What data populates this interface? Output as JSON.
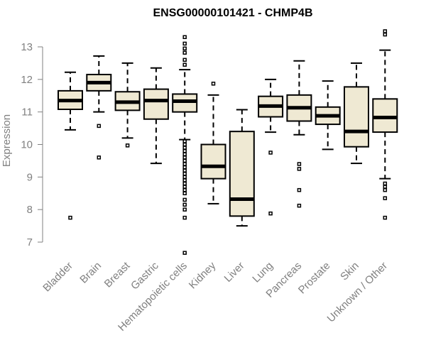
{
  "chart_data": {
    "type": "boxplot",
    "title": "ENSG00000101421 - CHMP4B",
    "ylabel": "Expression",
    "xlabel": "",
    "ylim": [
      6.6,
      13.6
    ],
    "yticks": [
      7,
      8,
      9,
      10,
      11,
      12,
      13
    ],
    "colors": {
      "box_fill": "#efe9d3",
      "axis": "#808080",
      "stroke": "#000000"
    },
    "categories": [
      "Bladder",
      "Brain",
      "Breast",
      "Gastric",
      "Hematopoietic cells",
      "Kidney",
      "Liver",
      "Lung",
      "Pancreas",
      "Prostate",
      "Skin",
      "Unknown / Other"
    ],
    "boxes": [
      {
        "min": 10.45,
        "q1": 11.08,
        "median": 11.35,
        "q3": 11.65,
        "max": 12.22,
        "outliers": [
          7.75
        ]
      },
      {
        "min": 11.0,
        "q1": 11.65,
        "median": 11.9,
        "q3": 12.15,
        "max": 12.72,
        "outliers": [
          10.57,
          9.6
        ]
      },
      {
        "min": 10.2,
        "q1": 11.05,
        "median": 11.3,
        "q3": 11.62,
        "max": 12.5,
        "outliers": [
          9.97
        ]
      },
      {
        "min": 9.42,
        "q1": 10.78,
        "median": 11.35,
        "q3": 11.7,
        "max": 12.35,
        "outliers": []
      },
      {
        "min": 10.15,
        "q1": 11.0,
        "median": 11.33,
        "q3": 11.55,
        "max": 12.3,
        "outliers": [
          13.3,
          13.1,
          12.95,
          12.82,
          12.6,
          12.45,
          10.1,
          10.0,
          9.9,
          9.8,
          9.7,
          9.6,
          9.5,
          9.4,
          9.3,
          9.2,
          9.1,
          9.0,
          8.9,
          8.8,
          8.7,
          8.6,
          8.5,
          8.3,
          8.15,
          8.0,
          7.75,
          6.67
        ]
      },
      {
        "min": 8.18,
        "q1": 8.95,
        "median": 9.33,
        "q3": 10.0,
        "max": 11.52,
        "outliers": [
          11.87
        ]
      },
      {
        "min": 7.5,
        "q1": 7.8,
        "median": 8.32,
        "q3": 10.4,
        "max": 11.07,
        "outliers": []
      },
      {
        "min": 10.38,
        "q1": 10.85,
        "median": 11.18,
        "q3": 11.48,
        "max": 12.0,
        "outliers": [
          9.75,
          7.88
        ]
      },
      {
        "min": 10.3,
        "q1": 10.72,
        "median": 11.13,
        "q3": 11.52,
        "max": 12.57,
        "outliers": [
          9.4,
          9.25,
          8.6,
          8.12
        ]
      },
      {
        "min": 9.85,
        "q1": 10.62,
        "median": 10.88,
        "q3": 11.15,
        "max": 11.95,
        "outliers": []
      },
      {
        "min": 9.42,
        "q1": 9.93,
        "median": 10.4,
        "q3": 11.77,
        "max": 12.5,
        "outliers": []
      },
      {
        "min": 8.95,
        "q1": 10.38,
        "median": 10.83,
        "q3": 11.4,
        "max": 12.9,
        "outliers": [
          13.48,
          13.38,
          8.8,
          8.7,
          8.6,
          8.35,
          7.75
        ]
      }
    ]
  }
}
